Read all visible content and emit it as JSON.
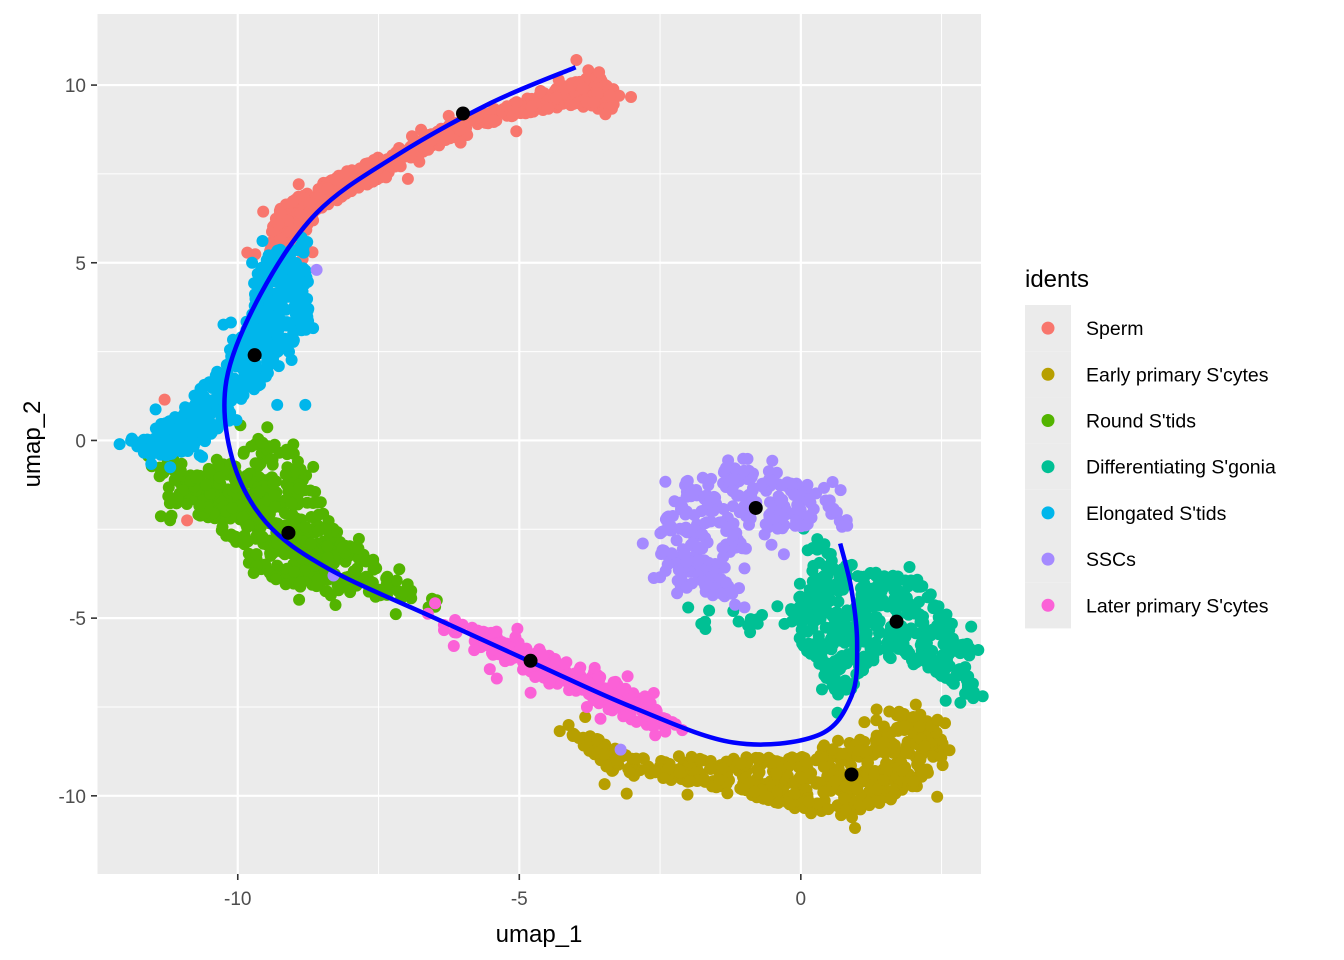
{
  "chart_data": {
    "type": "scatter",
    "title": "",
    "xlabel": "umap_1",
    "ylabel": "umap_2",
    "xlim": [
      -12.5,
      3.2
    ],
    "ylim": [
      -12.2,
      12.0
    ],
    "x_ticks": [
      -10,
      -5,
      0
    ],
    "x_tick_labels": [
      "-10",
      "-5",
      "0"
    ],
    "y_ticks": [
      10,
      5,
      0,
      -5,
      -10
    ],
    "y_tick_labels": [
      "10",
      "5",
      "0",
      "-5",
      "-10"
    ],
    "grid": true,
    "panel_background": "#ebebeb",
    "legend": {
      "title": "idents",
      "position": "right",
      "entries": [
        "Sperm",
        "Early primary S'cytes",
        "Round S'tids",
        "Differentiating S'gonia",
        "Elongated S'tids",
        "SSCs",
        "Later primary S'cytes"
      ]
    },
    "series": [
      {
        "name": "Sperm",
        "color": "#F8766D",
        "shape": [
          [
            -9.5,
            5.2
          ],
          [
            -9.3,
            6.5
          ],
          [
            -8.6,
            7.2
          ],
          [
            -7.6,
            7.9
          ],
          [
            -6.8,
            8.5
          ],
          [
            -5.9,
            9.1
          ],
          [
            -4.9,
            9.6
          ],
          [
            -4.0,
            10.1
          ],
          [
            -3.6,
            10.3
          ],
          [
            -3.2,
            9.7
          ],
          [
            -3.4,
            9.3
          ],
          [
            -4.2,
            9.4
          ],
          [
            -5.2,
            9.1
          ],
          [
            -6.2,
            8.5
          ],
          [
            -7.3,
            7.5
          ],
          [
            -8.1,
            6.9
          ],
          [
            -8.8,
            6.0
          ],
          [
            -9.0,
            5.3
          ]
        ],
        "n": 620,
        "spread": 0.22,
        "extra": [
          [
            -11.3,
            1.15
          ],
          [
            -10.9,
            -2.25
          ],
          [
            -8.2,
            7.0
          ],
          [
            -9.0,
            5.6
          ]
        ]
      },
      {
        "name": "Early primary S'cytes",
        "color": "#B79F00",
        "shape": [
          [
            -4.1,
            -8.3
          ],
          [
            -3.3,
            -9.4
          ],
          [
            -2.2,
            -9.6
          ],
          [
            -1.1,
            -9.9
          ],
          [
            0.0,
            -10.4
          ],
          [
            0.9,
            -10.6
          ],
          [
            1.9,
            -10.0
          ],
          [
            2.6,
            -9.0
          ],
          [
            2.4,
            -7.8
          ],
          [
            1.7,
            -7.6
          ],
          [
            1.3,
            -8.2
          ],
          [
            0.7,
            -8.6
          ],
          [
            0.2,
            -8.9
          ],
          [
            -0.9,
            -8.9
          ],
          [
            -1.9,
            -9.0
          ],
          [
            -3.0,
            -8.9
          ],
          [
            -3.9,
            -8.1
          ]
        ],
        "n": 520,
        "spread": 0.22,
        "extra": [
          [
            1.0,
            -9.8
          ],
          [
            1.3,
            -9.4
          ],
          [
            0.6,
            -9.6
          ],
          [
            1.6,
            -10.1
          ],
          [
            2.2,
            -8.6
          ],
          [
            -0.4,
            -10.2
          ],
          [
            0.8,
            -10.4
          ],
          [
            1.2,
            -10.2
          ],
          [
            0.4,
            -9.9
          ],
          [
            1.8,
            -9.3
          ],
          [
            1.5,
            -8.8
          ],
          [
            2.0,
            -9.6
          ]
        ]
      },
      {
        "name": "Round S'tids",
        "color": "#53B400",
        "shape": [
          [
            -11.5,
            -0.7
          ],
          [
            -11.2,
            -1.8
          ],
          [
            -10.2,
            -2.6
          ],
          [
            -9.6,
            -3.6
          ],
          [
            -9.2,
            -4.1
          ],
          [
            -8.2,
            -4.3
          ],
          [
            -7.0,
            -4.5
          ],
          [
            -6.4,
            -4.5
          ],
          [
            -7.4,
            -3.7
          ],
          [
            -8.3,
            -2.4
          ],
          [
            -9.0,
            -0.3
          ],
          [
            -9.6,
            0.1
          ],
          [
            -10.2,
            -0.6
          ],
          [
            -10.8,
            -0.9
          ]
        ],
        "n": 480,
        "spread": 0.24,
        "extra": [
          [
            -9.0,
            -3.7
          ],
          [
            -8.9,
            -4.0
          ],
          [
            -9.3,
            -2.9
          ],
          [
            -8.7,
            -2.9
          ],
          [
            -8.4,
            -3.3
          ],
          [
            -8.0,
            -4.2
          ],
          [
            -7.6,
            -4.0
          ],
          [
            -9.8,
            -2.4
          ],
          [
            -10.1,
            -1.9
          ],
          [
            -8.6,
            -4.1
          ]
        ]
      },
      {
        "name": "Differentiating S'gonia",
        "color": "#00C094",
        "shape": [
          [
            0.3,
            -2.7
          ],
          [
            0.9,
            -3.6
          ],
          [
            2.1,
            -3.9
          ],
          [
            3.0,
            -5.7
          ],
          [
            3.1,
            -7.4
          ],
          [
            2.3,
            -6.4
          ],
          [
            1.4,
            -6.1
          ],
          [
            0.7,
            -7.3
          ],
          [
            0.1,
            -6.0
          ],
          [
            -0.2,
            -5.0
          ],
          [
            -1.4,
            -5.0
          ],
          [
            -0.7,
            -5.3
          ],
          [
            0.1,
            -4.4
          ]
        ],
        "n": 420,
        "spread": 0.22,
        "extra": [
          [
            -2.0,
            -4.7
          ],
          [
            -1.7,
            -5.1
          ],
          [
            -1.2,
            -4.8
          ],
          [
            -0.9,
            -5.4
          ],
          [
            0.5,
            -4.3
          ],
          [
            1.7,
            -4.6
          ],
          [
            2.5,
            -5.0
          ]
        ]
      },
      {
        "name": "Elongated S'tids",
        "color": "#00B6EB",
        "shape": [
          [
            -12.1,
            -0.1
          ],
          [
            -11.2,
            0.6
          ],
          [
            -10.4,
            1.9
          ],
          [
            -9.9,
            3.2
          ],
          [
            -9.6,
            5.2
          ],
          [
            -8.8,
            5.6
          ],
          [
            -8.7,
            3.3
          ],
          [
            -9.3,
            2.0
          ],
          [
            -10.1,
            0.8
          ],
          [
            -10.6,
            -0.2
          ],
          [
            -11.4,
            -0.5
          ]
        ],
        "n": 460,
        "spread": 0.2,
        "extra": [
          [
            -9.3,
            1.0
          ],
          [
            -8.8,
            1.0
          ],
          [
            -10.6,
            0.2
          ],
          [
            -11.0,
            0.4
          ],
          [
            -9.5,
            1.8
          ],
          [
            -9.2,
            4.8
          ]
        ]
      },
      {
        "name": "SSCs",
        "color": "#A58AFF",
        "shape": [
          [
            -2.6,
            -2.7
          ],
          [
            -2.1,
            -1.1
          ],
          [
            -1.0,
            -0.6
          ],
          [
            -0.4,
            -0.9
          ],
          [
            0.4,
            -1.4
          ],
          [
            0.8,
            -2.3
          ],
          [
            -0.4,
            -2.5
          ],
          [
            -1.3,
            -3.2
          ],
          [
            -1.2,
            -4.5
          ],
          [
            -2.0,
            -4.3
          ],
          [
            -2.4,
            -3.7
          ]
        ],
        "n": 260,
        "spread": 0.2,
        "extra": [
          [
            -3.2,
            -8.7
          ],
          [
            -8.3,
            -3.8
          ],
          [
            -8.6,
            4.8
          ],
          [
            -1.0,
            -3.6
          ],
          [
            -0.3,
            -3.2
          ],
          [
            -0.1,
            -2.4
          ]
        ]
      },
      {
        "name": "Later primary S'cytes",
        "color": "#FB61D7",
        "shape": [
          [
            -6.4,
            -5.0
          ],
          [
            -5.4,
            -5.4
          ],
          [
            -4.7,
            -5.9
          ],
          [
            -3.5,
            -6.6
          ],
          [
            -2.7,
            -7.3
          ],
          [
            -2.2,
            -8.0
          ],
          [
            -2.5,
            -8.2
          ],
          [
            -3.4,
            -7.6
          ],
          [
            -4.6,
            -6.7
          ],
          [
            -5.4,
            -6.1
          ],
          [
            -6.2,
            -5.4
          ]
        ],
        "n": 230,
        "spread": 0.2,
        "extra": [
          [
            -5.4,
            -6.7
          ],
          [
            -4.8,
            -7.1
          ],
          [
            -3.8,
            -7.5
          ],
          [
            -5.8,
            -5.9
          ]
        ]
      }
    ],
    "centroids": [
      {
        "name": "Sperm",
        "x": -6.0,
        "y": 9.2
      },
      {
        "name": "Elongated S'tids",
        "x": -9.7,
        "y": 2.4
      },
      {
        "name": "Round S'tids",
        "x": -9.1,
        "y": -2.6
      },
      {
        "name": "Later primary S'cytes",
        "x": -4.8,
        "y": -6.2
      },
      {
        "name": "SSCs",
        "x": -0.8,
        "y": -1.9
      },
      {
        "name": "Differentiating S'gonia",
        "x": 1.7,
        "y": -5.1
      },
      {
        "name": "Early primary S'cytes",
        "x": 0.9,
        "y": -9.4
      }
    ],
    "trajectory": {
      "color": "#0000FF",
      "points": [
        [
          -4.0,
          10.5
        ],
        [
          -5.5,
          9.5
        ],
        [
          -7.2,
          8.0
        ],
        [
          -8.6,
          6.4
        ],
        [
          -9.6,
          4.1
        ],
        [
          -10.2,
          1.7
        ],
        [
          -10.1,
          -0.5
        ],
        [
          -9.5,
          -2.3
        ],
        [
          -8.4,
          -3.6
        ],
        [
          -6.5,
          -5.0
        ],
        [
          -4.7,
          -6.3
        ],
        [
          -3.0,
          -7.5
        ],
        [
          -1.2,
          -8.5
        ],
        [
          0.3,
          -8.3
        ],
        [
          0.9,
          -7.2
        ],
        [
          1.0,
          -5.7
        ],
        [
          0.9,
          -4.2
        ],
        [
          0.7,
          -2.9
        ]
      ]
    }
  }
}
